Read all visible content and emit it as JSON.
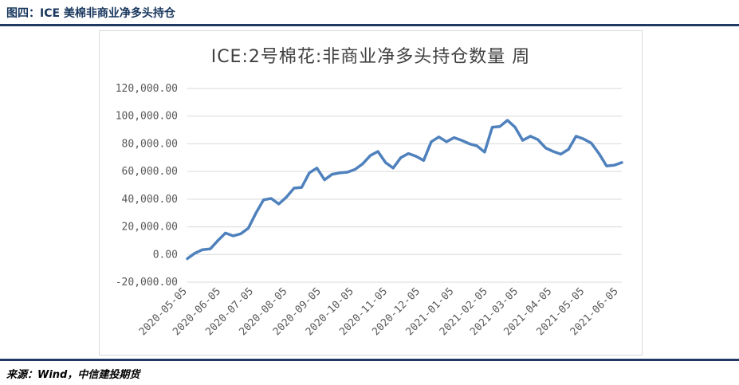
{
  "figure": {
    "header": "图四：ICE 美棉非商业净多头持仓",
    "source": "来源：Wind，中信建投期货"
  },
  "chart_data": {
    "type": "line",
    "title": "ICE:2号棉花:非商业净多头持仓数量 周",
    "xlabel": "",
    "ylabel": "",
    "ylim": [
      -20000,
      120000
    ],
    "yticks": [
      -20000,
      0,
      20000,
      40000,
      60000,
      80000,
      100000,
      120000
    ],
    "ytick_labels": [
      "-20,000.00",
      "0.00",
      "20,000.00",
      "40,000.00",
      "60,000.00",
      "80,000.00",
      "100,000.00",
      "120,000.00"
    ],
    "x_tick_labels": [
      "2020-05-05",
      "2020-06-05",
      "2020-07-05",
      "2020-08-05",
      "2020-09-05",
      "2020-10-05",
      "2020-11-05",
      "2020-12-05",
      "2021-01-05",
      "2021-02-05",
      "2021-03-05",
      "2021-04-05",
      "2021-05-05",
      "2021-06-05"
    ],
    "grid": true,
    "legend": "none",
    "series": [
      {
        "color": "#4f81bd",
        "points": [
          [
            "2020-05-05",
            -3000
          ],
          [
            "2020-05-12",
            1000
          ],
          [
            "2020-05-19",
            3500
          ],
          [
            "2020-05-26",
            4000
          ],
          [
            "2020-06-02",
            10000
          ],
          [
            "2020-06-09",
            15500
          ],
          [
            "2020-06-16",
            13500
          ],
          [
            "2020-06-23",
            15000
          ],
          [
            "2020-06-30",
            19000
          ],
          [
            "2020-07-07",
            30000
          ],
          [
            "2020-07-14",
            39500
          ],
          [
            "2020-07-21",
            40500
          ],
          [
            "2020-07-28",
            36500
          ],
          [
            "2020-08-04",
            41500
          ],
          [
            "2020-08-11",
            48000
          ],
          [
            "2020-08-18",
            48500
          ],
          [
            "2020-08-25",
            59000
          ],
          [
            "2020-09-01",
            62500
          ],
          [
            "2020-09-08",
            54000
          ],
          [
            "2020-09-15",
            58000
          ],
          [
            "2020-09-22",
            59000
          ],
          [
            "2020-09-29",
            59500
          ],
          [
            "2020-10-06",
            61500
          ],
          [
            "2020-10-13",
            65500
          ],
          [
            "2020-10-20",
            71500
          ],
          [
            "2020-10-27",
            74500
          ],
          [
            "2020-11-03",
            66500
          ],
          [
            "2020-11-10",
            62500
          ],
          [
            "2020-11-17",
            70000
          ],
          [
            "2020-11-24",
            73000
          ],
          [
            "2020-12-01",
            71000
          ],
          [
            "2020-12-08",
            68000
          ],
          [
            "2020-12-15",
            81500
          ],
          [
            "2020-12-22",
            85000
          ],
          [
            "2020-12-29",
            81500
          ],
          [
            "2021-01-05",
            84500
          ],
          [
            "2021-01-12",
            82500
          ],
          [
            "2021-01-19",
            80000
          ],
          [
            "2021-01-26",
            78500
          ],
          [
            "2021-02-02",
            74000
          ],
          [
            "2021-02-09",
            92000
          ],
          [
            "2021-02-16",
            92500
          ],
          [
            "2021-02-23",
            97000
          ],
          [
            "2021-03-02",
            92000
          ],
          [
            "2021-03-09",
            82500
          ],
          [
            "2021-03-16",
            85500
          ],
          [
            "2021-03-23",
            83000
          ],
          [
            "2021-03-30",
            77000
          ],
          [
            "2021-04-06",
            74500
          ],
          [
            "2021-04-13",
            72500
          ],
          [
            "2021-04-20",
            76000
          ],
          [
            "2021-04-27",
            85500
          ],
          [
            "2021-05-04",
            83500
          ],
          [
            "2021-05-11",
            80500
          ],
          [
            "2021-05-18",
            73000
          ],
          [
            "2021-05-25",
            64000
          ],
          [
            "2021-06-01",
            64500
          ],
          [
            "2021-06-08",
            66500
          ]
        ]
      }
    ]
  }
}
